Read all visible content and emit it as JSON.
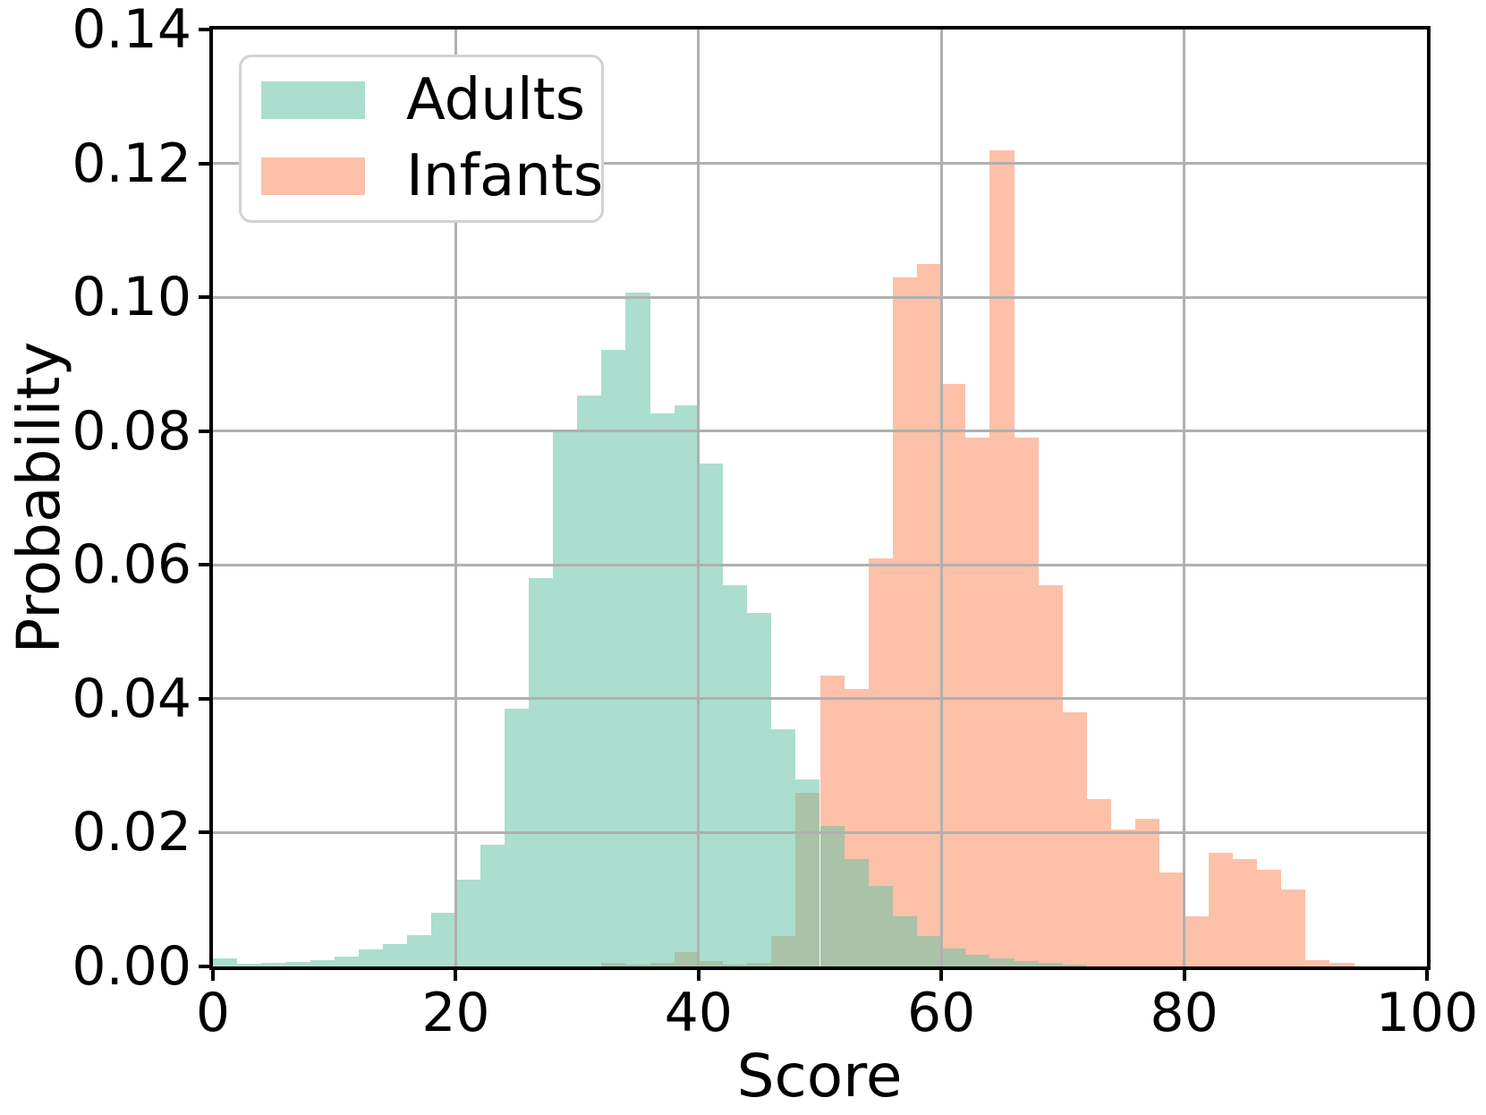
{
  "figure": {
    "background": "#ffffff",
    "text_color": "#000000",
    "spine_color": "#000000"
  },
  "chart_data": {
    "type": "bar",
    "subtype": "overlaid-probability-histogram",
    "title": "",
    "xlabel": "Score",
    "ylabel": "Probability",
    "xlim": [
      0,
      100
    ],
    "ylim": [
      0,
      0.14
    ],
    "x_ticks": [
      0,
      20,
      40,
      60,
      80,
      100
    ],
    "y_ticks": [
      "0.00",
      "0.02",
      "0.04",
      "0.06",
      "0.08",
      "0.10",
      "0.12",
      "0.14"
    ],
    "y_tick_values": [
      0,
      0.02,
      0.04,
      0.06,
      0.08,
      0.1,
      0.12,
      0.14
    ],
    "grid": true,
    "grid_color": "#b0b0b0",
    "bin_width": 2,
    "bar_alpha": 0.55,
    "legend_position": "upper-left",
    "series": [
      {
        "name": "Adults",
        "color": "#66c2a5",
        "bin_start": 0,
        "heights": [
          0.0012,
          0.0004,
          0.0006,
          0.0007,
          0.001,
          0.0015,
          0.0025,
          0.0034,
          0.0047,
          0.008,
          0.013,
          0.0182,
          0.0385,
          0.058,
          0.08,
          0.0853,
          0.0921,
          0.1007,
          0.0826,
          0.0838,
          0.0751,
          0.0569,
          0.0528,
          0.0354,
          0.028,
          0.021,
          0.016,
          0.012,
          0.0075,
          0.0045,
          0.0027,
          0.0018,
          0.0012,
          0.0008,
          0.0005,
          0.0003
        ]
      },
      {
        "name": "Infants",
        "color": "#fc8d62",
        "bin_start": 32,
        "heights": [
          0.0005,
          0.0003,
          0.0006,
          0.0021,
          0.0008,
          0.0003,
          0.0005,
          0.0045,
          0.026,
          0.0435,
          0.0415,
          0.061,
          0.103,
          0.105,
          0.087,
          0.079,
          0.122,
          0.079,
          0.057,
          0.038,
          0.025,
          0.0205,
          0.022,
          0.014,
          0.0075,
          0.017,
          0.016,
          0.0145,
          0.0115,
          0.001,
          0.0005
        ]
      }
    ],
    "legend": {
      "items": [
        {
          "label": "Adults",
          "color": "#66c2a5"
        },
        {
          "label": "Infants",
          "color": "#fc8d62"
        }
      ]
    }
  }
}
